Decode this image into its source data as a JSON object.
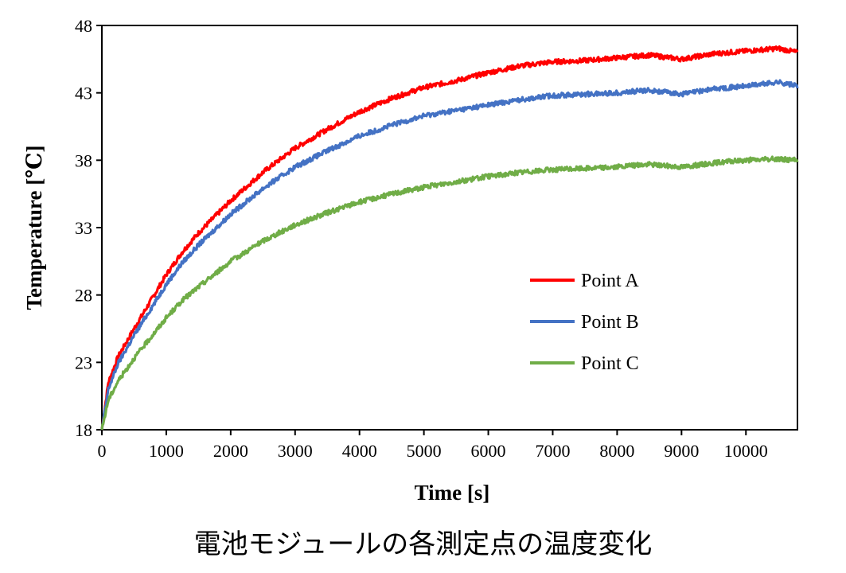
{
  "caption": "電池モジュールの各測定点の温度変化",
  "chart_data": {
    "type": "line",
    "xlabel": "Time [s]",
    "ylabel": "Temperature [℃]",
    "xlim": [
      0,
      10800
    ],
    "ylim": [
      18,
      48
    ],
    "x_ticks": [
      0,
      1000,
      2000,
      3000,
      4000,
      5000,
      6000,
      7000,
      8000,
      9000,
      10000
    ],
    "y_ticks": [
      18,
      23,
      28,
      33,
      38,
      43,
      48
    ],
    "grid": false,
    "legend_position": "center-right",
    "x": [
      0,
      100,
      250,
      500,
      750,
      1000,
      1250,
      1500,
      2000,
      2500,
      3000,
      3500,
      4000,
      4500,
      5000,
      5500,
      6000,
      6500,
      7000,
      7500,
      8000,
      8500,
      9000,
      9500,
      10000,
      10500,
      10800
    ],
    "series": [
      {
        "name": "Point A",
        "color": "#ff0000",
        "values": [
          18.0,
          21.5,
          23.4,
          25.5,
          27.5,
          29.5,
          31.2,
          32.6,
          35.0,
          37.1,
          38.9,
          40.3,
          41.6,
          42.6,
          43.4,
          43.9,
          44.5,
          45.0,
          45.3,
          45.4,
          45.6,
          45.8,
          45.5,
          45.9,
          46.1,
          46.3,
          46.0
        ]
      },
      {
        "name": "Point B",
        "color": "#4472c4",
        "values": [
          18.0,
          21.0,
          22.9,
          25.0,
          26.9,
          28.8,
          30.4,
          31.7,
          34.0,
          35.9,
          37.5,
          38.7,
          39.8,
          40.6,
          41.3,
          41.7,
          42.1,
          42.5,
          42.8,
          42.9,
          43.0,
          43.2,
          42.9,
          43.3,
          43.5,
          43.8,
          43.5
        ]
      },
      {
        "name": "Point C",
        "color": "#70ad47",
        "values": [
          18.0,
          20.2,
          21.6,
          23.3,
          24.8,
          26.3,
          27.6,
          28.6,
          30.5,
          32.0,
          33.2,
          34.1,
          34.9,
          35.5,
          36.0,
          36.4,
          36.8,
          37.1,
          37.3,
          37.4,
          37.5,
          37.7,
          37.5,
          37.8,
          38.0,
          38.1,
          38.0
        ]
      }
    ]
  }
}
